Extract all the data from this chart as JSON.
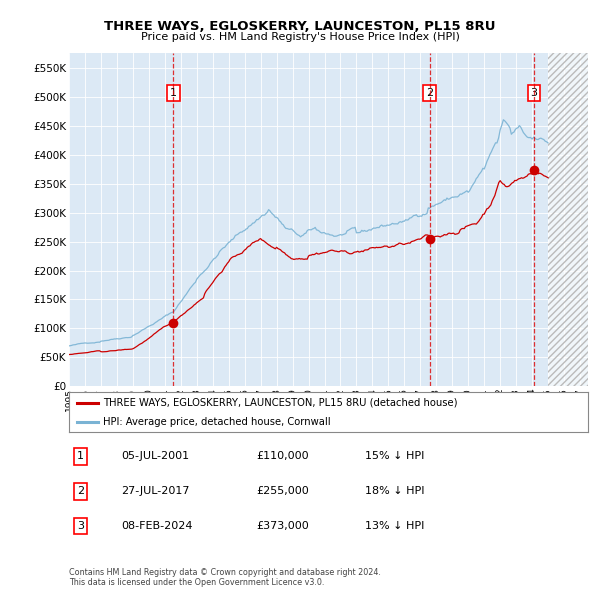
{
  "title": "THREE WAYS, EGLOSKERRY, LAUNCESTON, PL15 8RU",
  "subtitle": "Price paid vs. HM Land Registry's House Price Index (HPI)",
  "hpi_color": "#7ab3d4",
  "property_color": "#cc0000",
  "plot_bg_color": "#dce9f5",
  "ylim": [
    0,
    575000
  ],
  "ytick_values": [
    0,
    50000,
    100000,
    150000,
    200000,
    250000,
    300000,
    350000,
    400000,
    450000,
    500000,
    550000
  ],
  "ytick_labels": [
    "£0",
    "£50K",
    "£100K",
    "£150K",
    "£200K",
    "£250K",
    "£300K",
    "£350K",
    "£400K",
    "£450K",
    "£500K",
    "£550K"
  ],
  "xmin_year": 1995.0,
  "xmax_year": 2027.5,
  "hatch_start_year": 2025.0,
  "sale_points": [
    {
      "year": 2001.54,
      "price": 110000,
      "label": "1"
    },
    {
      "year": 2017.58,
      "price": 255000,
      "label": "2"
    },
    {
      "year": 2024.12,
      "price": 373000,
      "label": "3"
    }
  ],
  "legend_entries": [
    {
      "label": "THREE WAYS, EGLOSKERRY, LAUNCESTON, PL15 8RU (detached house)",
      "color": "#cc0000"
    },
    {
      "label": "HPI: Average price, detached house, Cornwall",
      "color": "#7ab3d4"
    }
  ],
  "table_rows": [
    {
      "num": "1",
      "date": "05-JUL-2001",
      "price": "£110,000",
      "hpi": "15% ↓ HPI"
    },
    {
      "num": "2",
      "date": "27-JUL-2017",
      "price": "£255,000",
      "hpi": "18% ↓ HPI"
    },
    {
      "num": "3",
      "date": "08-FEB-2024",
      "price": "£373,000",
      "hpi": "13% ↓ HPI"
    }
  ],
  "footer": "Contains HM Land Registry data © Crown copyright and database right 2024.\nThis data is licensed under the Open Government Licence v3.0.",
  "xtick_years": [
    1995,
    1996,
    1997,
    1998,
    1999,
    2000,
    2001,
    2002,
    2003,
    2004,
    2005,
    2006,
    2007,
    2008,
    2009,
    2010,
    2011,
    2012,
    2013,
    2014,
    2015,
    2016,
    2017,
    2018,
    2019,
    2020,
    2021,
    2022,
    2023,
    2024,
    2025,
    2026,
    2027
  ]
}
